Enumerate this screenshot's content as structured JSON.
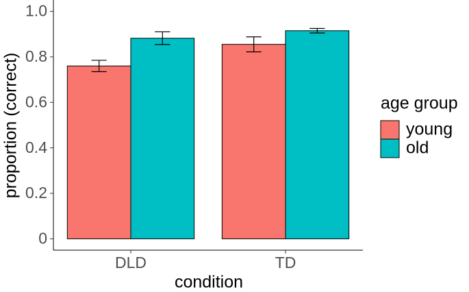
{
  "chart_data": {
    "type": "bar",
    "xlabel": "condition",
    "ylabel": "proportion (correct)",
    "categories": [
      "DLD",
      "TD"
    ],
    "series": [
      {
        "name": "young",
        "color": "#f8766d",
        "values": [
          0.76,
          0.855
        ],
        "errors": [
          0.025,
          0.033
        ]
      },
      {
        "name": "old",
        "color": "#00bfc4",
        "values": [
          0.882,
          0.915
        ],
        "errors": [
          0.028,
          0.01
        ]
      }
    ],
    "ylim": [
      -0.05,
      1.05
    ],
    "yticks": [
      0,
      0.2,
      0.4,
      0.6,
      0.8,
      {
        "value": 1,
        "label": "1.0"
      }
    ],
    "legend": {
      "title": "age group",
      "position": "right"
    },
    "grid": false
  }
}
